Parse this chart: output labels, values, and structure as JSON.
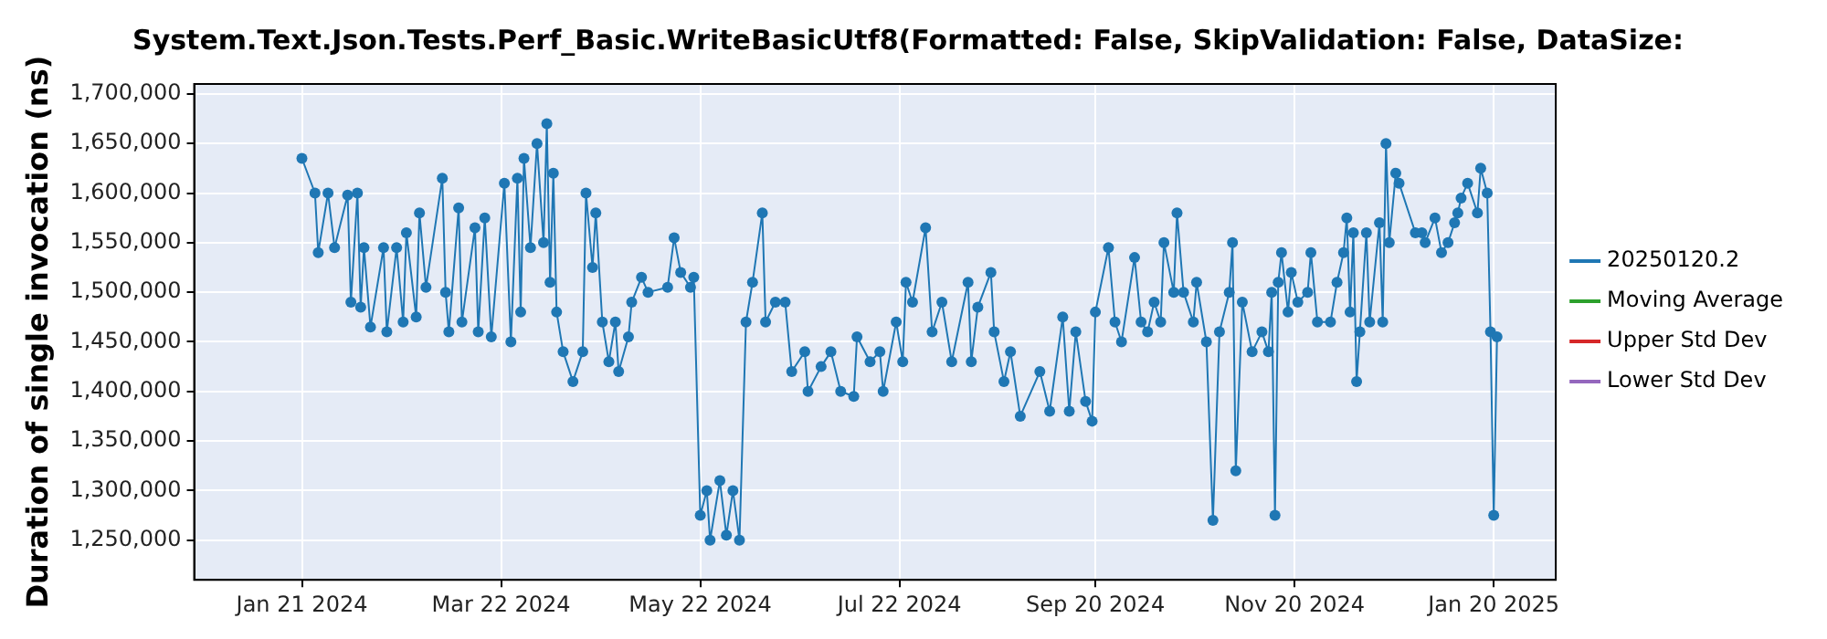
{
  "chart_data": {
    "type": "line",
    "title": "System.Text.Json.Tests.Perf_Basic.WriteBasicUtf8(Formatted: False, SkipValidation: False, DataSize:",
    "ylabel": "Duration of single invocation (ns)",
    "xlim": [
      "2023-12-19",
      "2025-02-08"
    ],
    "xticks": [
      {
        "value": "2024-01-21",
        "label": "Jan 21 2024"
      },
      {
        "value": "2024-03-22",
        "label": "Mar 22 2024"
      },
      {
        "value": "2024-05-22",
        "label": "May 22 2024"
      },
      {
        "value": "2024-07-22",
        "label": "Jul 22 2024"
      },
      {
        "value": "2024-09-20",
        "label": "Sep 20 2024"
      },
      {
        "value": "2024-11-20",
        "label": "Nov 20 2024"
      },
      {
        "value": "2025-01-20",
        "label": "Jan 20 2025"
      }
    ],
    "ylim": [
      1210000,
      1710000
    ],
    "yticks": [
      {
        "value": 1250000,
        "label": "1,250,000"
      },
      {
        "value": 1300000,
        "label": "1,300,000"
      },
      {
        "value": 1350000,
        "label": "1,350,000"
      },
      {
        "value": 1400000,
        "label": "1,400,000"
      },
      {
        "value": 1450000,
        "label": "1,450,000"
      },
      {
        "value": 1500000,
        "label": "1,500,000"
      },
      {
        "value": 1550000,
        "label": "1,550,000"
      },
      {
        "value": 1600000,
        "label": "1,600,000"
      },
      {
        "value": 1650000,
        "label": "1,650,000"
      },
      {
        "value": 1700000,
        "label": "1,700,000"
      }
    ],
    "grid": true,
    "legend": "right",
    "marker": "circle",
    "series": [
      {
        "name": "20250120.2",
        "color": "#1f77b4",
        "x": [
          "2024-01-21",
          "2024-01-25",
          "2024-01-26",
          "2024-01-29",
          "2024-01-31",
          "2024-02-04",
          "2024-02-05",
          "2024-02-07",
          "2024-02-08",
          "2024-02-09",
          "2024-02-11",
          "2024-02-15",
          "2024-02-16",
          "2024-02-19",
          "2024-02-21",
          "2024-02-22",
          "2024-02-25",
          "2024-02-26",
          "2024-02-28",
          "2024-03-04",
          "2024-03-05",
          "2024-03-06",
          "2024-03-09",
          "2024-03-10",
          "2024-03-14",
          "2024-03-15",
          "2024-03-17",
          "2024-03-19",
          "2024-03-23",
          "2024-03-25",
          "2024-03-27",
          "2024-03-28",
          "2024-03-29",
          "2024-03-31",
          "2024-04-02",
          "2024-04-04",
          "2024-04-05",
          "2024-04-06",
          "2024-04-07",
          "2024-04-08",
          "2024-04-10",
          "2024-04-13",
          "2024-04-16",
          "2024-04-17",
          "2024-04-19",
          "2024-04-20",
          "2024-04-22",
          "2024-04-24",
          "2024-04-26",
          "2024-04-27",
          "2024-04-30",
          "2024-05-01",
          "2024-05-04",
          "2024-05-06",
          "2024-05-12",
          "2024-05-14",
          "2024-05-16",
          "2024-05-19",
          "2024-05-20",
          "2024-05-22",
          "2024-05-24",
          "2024-05-25",
          "2024-05-28",
          "2024-05-30",
          "2024-06-01",
          "2024-06-03",
          "2024-06-05",
          "2024-06-07",
          "2024-06-10",
          "2024-06-11",
          "2024-06-14",
          "2024-06-17",
          "2024-06-19",
          "2024-06-23",
          "2024-06-24",
          "2024-06-28",
          "2024-07-01",
          "2024-07-04",
          "2024-07-08",
          "2024-07-09",
          "2024-07-13",
          "2024-07-16",
          "2024-07-17",
          "2024-07-21",
          "2024-07-23",
          "2024-07-24",
          "2024-07-26",
          "2024-07-30",
          "2024-08-01",
          "2024-08-04",
          "2024-08-07",
          "2024-08-12",
          "2024-08-13",
          "2024-08-15",
          "2024-08-19",
          "2024-08-20",
          "2024-08-23",
          "2024-08-25",
          "2024-08-28",
          "2024-09-03",
          "2024-09-06",
          "2024-09-10",
          "2024-09-12",
          "2024-09-14",
          "2024-09-17",
          "2024-09-19",
          "2024-09-20",
          "2024-09-24",
          "2024-09-26",
          "2024-09-28",
          "2024-10-02",
          "2024-10-04",
          "2024-10-06",
          "2024-10-08",
          "2024-10-10",
          "2024-10-11",
          "2024-10-14",
          "2024-10-15",
          "2024-10-17",
          "2024-10-20",
          "2024-10-21",
          "2024-10-24",
          "2024-10-26",
          "2024-10-28",
          "2024-10-31",
          "2024-11-01",
          "2024-11-02",
          "2024-11-04",
          "2024-11-07",
          "2024-11-10",
          "2024-11-12",
          "2024-11-13",
          "2024-11-14",
          "2024-11-15",
          "2024-11-16",
          "2024-11-18",
          "2024-11-19",
          "2024-11-21",
          "2024-11-24",
          "2024-11-25",
          "2024-11-27",
          "2024-12-01",
          "2024-12-03",
          "2024-12-05",
          "2024-12-06",
          "2024-12-07",
          "2024-12-08",
          "2024-12-09",
          "2024-12-10",
          "2024-12-12",
          "2024-12-13",
          "2024-12-16",
          "2024-12-17",
          "2024-12-18",
          "2024-12-19",
          "2024-12-21",
          "2024-12-22",
          "2024-12-27",
          "2024-12-29",
          "2024-12-30",
          "2025-01-02",
          "2025-01-04",
          "2025-01-06",
          "2025-01-08",
          "2025-01-09",
          "2025-01-10",
          "2025-01-12",
          "2025-01-15",
          "2025-01-16",
          "2025-01-18",
          "2025-01-19",
          "2025-01-20",
          "2025-01-21"
        ],
        "values": [
          1635000,
          1600000,
          1540000,
          1600000,
          1545000,
          1598000,
          1490000,
          1600000,
          1485000,
          1545000,
          1465000,
          1545000,
          1460000,
          1545000,
          1470000,
          1560000,
          1475000,
          1580000,
          1505000,
          1615000,
          1500000,
          1460000,
          1585000,
          1470000,
          1565000,
          1460000,
          1575000,
          1455000,
          1610000,
          1450000,
          1615000,
          1480000,
          1635000,
          1545000,
          1650000,
          1550000,
          1670000,
          1510000,
          1620000,
          1480000,
          1440000,
          1410000,
          1440000,
          1600000,
          1525000,
          1580000,
          1470000,
          1430000,
          1470000,
          1420000,
          1455000,
          1490000,
          1515000,
          1500000,
          1505000,
          1555000,
          1520000,
          1505000,
          1515000,
          1275000,
          1300000,
          1250000,
          1310000,
          1255000,
          1300000,
          1250000,
          1470000,
          1510000,
          1580000,
          1470000,
          1490000,
          1490000,
          1420000,
          1440000,
          1400000,
          1425000,
          1440000,
          1400000,
          1395000,
          1455000,
          1430000,
          1440000,
          1400000,
          1470000,
          1430000,
          1510000,
          1490000,
          1565000,
          1460000,
          1490000,
          1430000,
          1510000,
          1430000,
          1485000,
          1520000,
          1460000,
          1410000,
          1440000,
          1375000,
          1420000,
          1380000,
          1475000,
          1380000,
          1460000,
          1390000,
          1370000,
          1480000,
          1545000,
          1470000,
          1450000,
          1535000,
          1470000,
          1460000,
          1490000,
          1470000,
          1550000,
          1500000,
          1580000,
          1500000,
          1470000,
          1510000,
          1450000,
          1270000,
          1460000,
          1500000,
          1550000,
          1320000,
          1490000,
          1440000,
          1460000,
          1440000,
          1500000,
          1275000,
          1510000,
          1540000,
          1480000,
          1520000,
          1490000,
          1500000,
          1540000,
          1470000,
          1470000,
          1510000,
          1540000,
          1575000,
          1480000,
          1560000,
          1410000,
          1460000,
          1560000,
          1470000,
          1570000,
          1470000,
          1650000,
          1550000,
          1620000,
          1610000,
          1560000,
          1560000,
          1550000,
          1575000,
          1540000,
          1550000,
          1570000,
          1580000,
          1595000,
          1610000,
          1580000,
          1625000,
          1600000,
          1460000,
          1275000,
          1455000
        ]
      },
      {
        "name": "Moving Average",
        "color": "#2ca02c"
      },
      {
        "name": "Upper Std Dev",
        "color": "#d62728"
      },
      {
        "name": "Lower Std Dev",
        "color": "#9467bd"
      }
    ]
  }
}
